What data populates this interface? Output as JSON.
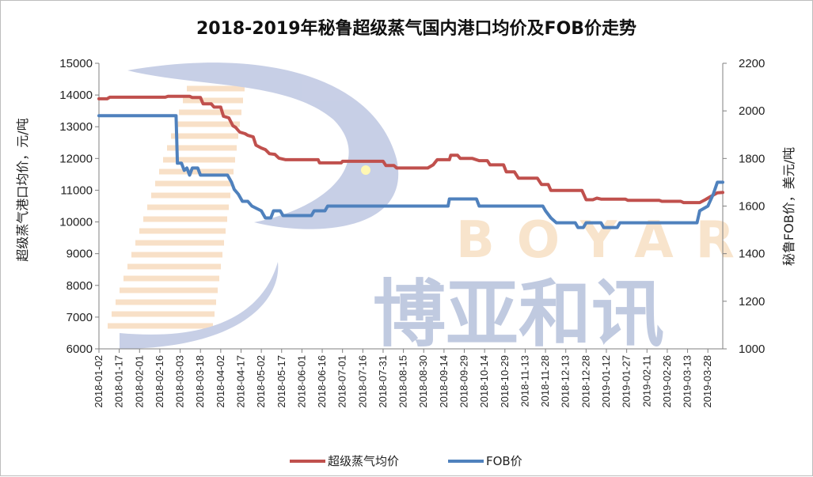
{
  "chart_data": {
    "type": "line",
    "title": "2018-2019年秘鲁超级蒸气国内港口均价及FOB价走势",
    "ylabel_left": "超级蒸气港口均价，元/吨",
    "ylabel_right": "秘鲁FOB价，美元/吨",
    "ylim_left": [
      6000,
      15000
    ],
    "yticks_left": [
      "15000",
      "14000",
      "13000",
      "12000",
      "11000",
      "10000",
      "9000",
      "8000",
      "7000",
      "6000"
    ],
    "ylim_right": [
      1000,
      2200
    ],
    "yticks_right": [
      "2200",
      "2000",
      "1800",
      "1600",
      "1400",
      "1200",
      "1000"
    ],
    "x_categories": [
      "2018-01-02",
      "2018-01-17",
      "2018-02-01",
      "2018-02-16",
      "2018-03-03",
      "2018-03-18",
      "2018-04-02",
      "2018-04-17",
      "2018-05-02",
      "2018-05-17",
      "2018-06-01",
      "2018-06-16",
      "2018-07-01",
      "2018-07-16",
      "2018-07-31",
      "2018-08-15",
      "2018-08-30",
      "2018-09-14",
      "2018-09-29",
      "2018-10-14",
      "2018-10-29",
      "2018-11-13",
      "2018-11-28",
      "2018-12-13",
      "2018-12-28",
      "2019-01-12",
      "2019-01-27",
      "2019-02-11",
      "2019-02-26",
      "2019-03-13",
      "2019-03-28"
    ],
    "x_end": "2019-04-08",
    "legend_position": "bottom",
    "series": [
      {
        "name": "超级蒸气均价",
        "axis": "left",
        "color": "#c0504d",
        "points": [
          [
            "2018-01-02",
            13880
          ],
          [
            "2018-01-08",
            13880
          ],
          [
            "2018-01-10",
            13930
          ],
          [
            "2018-02-20",
            13930
          ],
          [
            "2018-02-22",
            13960
          ],
          [
            "2018-03-10",
            13960
          ],
          [
            "2018-03-12",
            13920
          ],
          [
            "2018-03-18",
            13920
          ],
          [
            "2018-03-20",
            13720
          ],
          [
            "2018-03-26",
            13720
          ],
          [
            "2018-03-28",
            13620
          ],
          [
            "2018-04-02",
            13620
          ],
          [
            "2018-04-04",
            13330
          ],
          [
            "2018-04-08",
            13280
          ],
          [
            "2018-04-11",
            13030
          ],
          [
            "2018-04-13",
            12980
          ],
          [
            "2018-04-16",
            12830
          ],
          [
            "2018-04-20",
            12780
          ],
          [
            "2018-04-22",
            12730
          ],
          [
            "2018-04-26",
            12680
          ],
          [
            "2018-04-28",
            12420
          ],
          [
            "2018-05-02",
            12330
          ],
          [
            "2018-05-05",
            12280
          ],
          [
            "2018-05-08",
            12150
          ],
          [
            "2018-05-12",
            12130
          ],
          [
            "2018-05-15",
            12010
          ],
          [
            "2018-05-20",
            11960
          ],
          [
            "2018-06-13",
            11960
          ],
          [
            "2018-06-14",
            11860
          ],
          [
            "2018-06-30",
            11860
          ],
          [
            "2018-07-01",
            11910
          ],
          [
            "2018-07-31",
            11910
          ],
          [
            "2018-08-02",
            11780
          ],
          [
            "2018-08-08",
            11780
          ],
          [
            "2018-08-10",
            11700
          ],
          [
            "2018-09-02",
            11700
          ],
          [
            "2018-09-06",
            11800
          ],
          [
            "2018-09-09",
            11960
          ],
          [
            "2018-09-18",
            11960
          ],
          [
            "2018-09-19",
            12100
          ],
          [
            "2018-09-24",
            12100
          ],
          [
            "2018-09-26",
            12000
          ],
          [
            "2018-10-05",
            12000
          ],
          [
            "2018-10-10",
            11930
          ],
          [
            "2018-10-16",
            11930
          ],
          [
            "2018-10-18",
            11800
          ],
          [
            "2018-10-28",
            11800
          ],
          [
            "2018-10-30",
            11580
          ],
          [
            "2018-11-05",
            11580
          ],
          [
            "2018-11-08",
            11380
          ],
          [
            "2018-11-22",
            11380
          ],
          [
            "2018-11-25",
            11180
          ],
          [
            "2018-11-30",
            11180
          ],
          [
            "2018-12-02",
            10990
          ],
          [
            "2018-12-25",
            10990
          ],
          [
            "2018-12-28",
            10700
          ],
          [
            "2019-01-02",
            10700
          ],
          [
            "2019-01-05",
            10750
          ],
          [
            "2019-01-08",
            10720
          ],
          [
            "2019-01-26",
            10720
          ],
          [
            "2019-01-28",
            10680
          ],
          [
            "2019-02-20",
            10680
          ],
          [
            "2019-02-22",
            10650
          ],
          [
            "2019-03-08",
            10650
          ],
          [
            "2019-03-10",
            10610
          ],
          [
            "2019-03-22",
            10610
          ],
          [
            "2019-03-26",
            10700
          ],
          [
            "2019-03-30",
            10800
          ],
          [
            "2019-04-04",
            10920
          ],
          [
            "2019-04-08",
            10930
          ]
        ]
      },
      {
        "name": "FOB价",
        "axis": "right",
        "color": "#4f81bd",
        "points": [
          [
            "2018-01-02",
            1980
          ],
          [
            "2018-02-28",
            1980
          ],
          [
            "2018-03-01",
            1780
          ],
          [
            "2018-03-04",
            1780
          ],
          [
            "2018-03-06",
            1750
          ],
          [
            "2018-03-08",
            1760
          ],
          [
            "2018-03-10",
            1730
          ],
          [
            "2018-03-12",
            1760
          ],
          [
            "2018-03-16",
            1760
          ],
          [
            "2018-03-18",
            1730
          ],
          [
            "2018-04-07",
            1730
          ],
          [
            "2018-04-10",
            1700
          ],
          [
            "2018-04-12",
            1670
          ],
          [
            "2018-04-15",
            1650
          ],
          [
            "2018-04-18",
            1620
          ],
          [
            "2018-04-22",
            1620
          ],
          [
            "2018-04-25",
            1600
          ],
          [
            "2018-05-02",
            1580
          ],
          [
            "2018-05-05",
            1550
          ],
          [
            "2018-05-09",
            1550
          ],
          [
            "2018-05-11",
            1580
          ],
          [
            "2018-05-16",
            1580
          ],
          [
            "2018-05-18",
            1560
          ],
          [
            "2018-06-08",
            1560
          ],
          [
            "2018-06-10",
            1580
          ],
          [
            "2018-06-18",
            1580
          ],
          [
            "2018-06-20",
            1600
          ],
          [
            "2018-09-17",
            1600
          ],
          [
            "2018-09-18",
            1630
          ],
          [
            "2018-10-08",
            1630
          ],
          [
            "2018-10-10",
            1600
          ],
          [
            "2018-11-26",
            1600
          ],
          [
            "2018-11-28",
            1580
          ],
          [
            "2018-12-02",
            1550
          ],
          [
            "2018-12-06",
            1530
          ],
          [
            "2018-12-20",
            1530
          ],
          [
            "2018-12-22",
            1510
          ],
          [
            "2018-12-26",
            1510
          ],
          [
            "2018-12-28",
            1530
          ],
          [
            "2019-01-08",
            1530
          ],
          [
            "2019-01-10",
            1510
          ],
          [
            "2019-01-20",
            1510
          ],
          [
            "2019-01-22",
            1530
          ],
          [
            "2019-03-20",
            1530
          ],
          [
            "2019-03-22",
            1580
          ],
          [
            "2019-03-28",
            1600
          ],
          [
            "2019-04-01",
            1650
          ],
          [
            "2019-04-04",
            1700
          ],
          [
            "2019-04-08",
            1700
          ]
        ]
      }
    ],
    "watermark": {
      "text_latin": "BOYAR",
      "text_cn": "博亚和讯",
      "color_cn": "#8e9fc8",
      "color_latin": "#f3cfa3"
    }
  }
}
